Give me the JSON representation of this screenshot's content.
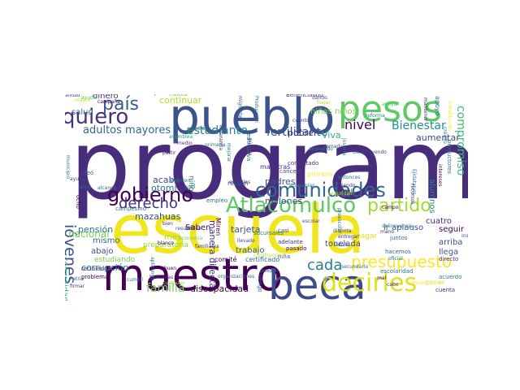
{
  "cloud": {
    "words": [
      {
        "t": "programa",
        "c": "#472d7b"
      },
      {
        "t": "escuela",
        "c": "#f1e51d"
      },
      {
        "t": "pueblo",
        "c": "#3b528b"
      },
      {
        "t": "pesos",
        "c": "#5ec962"
      },
      {
        "t": "maestro",
        "c": "#440154"
      },
      {
        "t": "beca",
        "c": "#3e4a89"
      },
      {
        "t": "gobierno",
        "c": "#440154"
      },
      {
        "t": "comunidades",
        "c": "#31688e"
      },
      {
        "t": "Atlacomulco",
        "c": "#5ec962"
      },
      {
        "t": "quiero",
        "c": "#46327e"
      },
      {
        "t": "decirles",
        "c": "#dde318"
      },
      {
        "t": "presupuesto",
        "c": "#fde725"
      },
      {
        "t": "jóvenes",
        "c": "#3b528b"
      },
      {
        "t": "derecho",
        "c": "#46337f"
      },
      {
        "t": "partido",
        "c": "#a2da37"
      },
      {
        "t": "país",
        "c": "#365d8d"
      },
      {
        "t": "cada",
        "c": "#277f8e"
      },
      {
        "t": "nivel",
        "c": "#440154"
      },
      {
        "t": "fertilizante",
        "c": "#3b528b"
      },
      {
        "t": "estudiante",
        "c": "#26828e"
      },
      {
        "t": "adultos mayores",
        "c": "#31688e"
      },
      {
        "t": "Bienestar",
        "c": "#21918c"
      },
      {
        "t": "familia",
        "c": "#73d056"
      },
      {
        "t": "discapacidad",
        "c": "#440154"
      },
      {
        "t": "corrupción",
        "c": "#2a788e"
      },
      {
        "t": "comunidades indígenas",
        "c": "#2ab07f"
      },
      {
        "t": "compromiso",
        "c": "#3dbc74"
      },
      {
        "t": "aumentar",
        "c": "#3e4c8a"
      },
      {
        "t": "millones",
        "c": "#3b528b"
      },
      {
        "t": "padres",
        "c": "#39568c"
      },
      {
        "t": "tonelada",
        "c": "#3e4989"
      },
      {
        "t": "nacional",
        "c": "#75d054"
      },
      {
        "t": "pensión",
        "c": "#2c728e"
      },
      {
        "t": "mismo",
        "c": "#31688e"
      },
      {
        "t": "abajo",
        "c": "#39568c"
      },
      {
        "t": "salud",
        "c": "#31688e"
      },
      {
        "t": "continuar",
        "c": "#b5de2b"
      },
      {
        "t": "dinero",
        "c": "#46327e"
      },
      {
        "t": "mazahuas",
        "c": "#3b528b"
      },
      {
        "t": "acabó",
        "c": "#3f4788"
      },
      {
        "t": "otomí",
        "c": "#2c728e"
      },
      {
        "t": "pobre",
        "c": "#46337f"
      },
      {
        "t": "Viva",
        "c": "#2db27d"
      },
      {
        "t": "tarjeta",
        "c": "#3b528b"
      },
      {
        "t": "trabajo",
        "c": "#31688e"
      },
      {
        "t": "Saben",
        "c": "#440154"
      },
      {
        "t": "mes",
        "c": "#a5db36"
      },
      {
        "t": "niñas niños",
        "c": "#7ad151"
      },
      {
        "t": "llega",
        "c": "#39568c"
      },
      {
        "t": "arriba",
        "c": "#3b528b"
      },
      {
        "t": "cuatro",
        "c": "#482878"
      },
      {
        "t": "seguir",
        "c": "#440154"
      },
      {
        "t": "ir aplauso",
        "c": "#3b528b"
      },
      {
        "t": "pagar",
        "c": "#d8e219"
      },
      {
        "t": "comité",
        "c": "#440154"
      },
      {
        "t": "certificado",
        "c": "#31688e"
      },
      {
        "t": "estudiando",
        "c": "#7ad151"
      },
      {
        "t": "preparatoria",
        "c": "#8fd744"
      },
      {
        "t": "alumnos",
        "c": "#26828e"
      },
      {
        "t": "niño",
        "c": "#2c728e"
      },
      {
        "t": "manera directa",
        "c": "#46327e"
      },
      {
        "t": "escolaridad",
        "c": "#2a788e"
      },
      {
        "t": "primero",
        "c": "#fde725"
      },
      {
        "t": "maestras",
        "c": "#46337f"
      },
      {
        "t": "apoyo",
        "c": "#2a788e"
      },
      {
        "t": "Miren",
        "c": "#440154"
      },
      {
        "t": "región",
        "c": "#3b528b"
      },
      {
        "t": "sólo",
        "c": "#31688e"
      },
      {
        "t": "adelante",
        "c": "#46327e"
      },
      {
        "t": "casi",
        "c": "#39568c"
      },
      {
        "t": "niña",
        "c": "#3b528b"
      },
      {
        "t": "pasado",
        "c": "#440154"
      },
      {
        "t": "cancelé",
        "c": "#3e4a89"
      },
      {
        "t": "contratado",
        "c": "#46327e"
      },
      {
        "t": "campesino",
        "c": "#2c728e"
      },
      {
        "t": "Beneficiando",
        "c": "#46327e"
      },
      {
        "t": "beneficiando",
        "c": "#39568c"
      },
      {
        "t": "acabar",
        "c": "#3b528b"
      },
      {
        "t": "regiones",
        "c": "#46327e"
      },
      {
        "t": "palabra",
        "c": "#440154"
      },
      {
        "t": "llegar",
        "c": "#b8de29"
      },
      {
        "t": "ustedes",
        "c": "#35b779"
      },
      {
        "t": "dando",
        "c": "#3e4a89"
      },
      {
        "t": "cuanto",
        "c": "#46327e"
      },
      {
        "t": "reforma",
        "c": "#26828e"
      },
      {
        "t": "estudian",
        "c": "#31688e"
      },
      {
        "t": "asamblea",
        "c": "#20a486"
      },
      {
        "t": "primaria",
        "c": "#2c728e"
      },
      {
        "t": "partir",
        "c": "#46327e"
      },
      {
        "t": "creó",
        "c": "#31688e"
      },
      {
        "t": "ocho",
        "c": "#440154"
      },
      {
        "t": "ayuda",
        "c": "#3e4a89"
      },
      {
        "t": "años",
        "c": "#31688e"
      },
      {
        "t": "alcance",
        "c": "#31688e"
      },
      {
        "t": "recibiendo",
        "c": "#46327e"
      },
      {
        "t": "problema",
        "c": "#440154"
      },
      {
        "t": "cumplí",
        "c": "#31688e"
      },
      {
        "t": "firmar",
        "c": "#46327e"
      },
      {
        "t": "Patria",
        "c": "#31688e"
      },
      {
        "t": "bancarias",
        "c": "#46327e"
      },
      {
        "t": "sucursales",
        "c": "#2c728e"
      },
      {
        "t": "blanco",
        "c": "#440154"
      },
      {
        "t": "bien",
        "c": "#46327e"
      },
      {
        "t": "buen",
        "c": "#440154"
      },
      {
        "t": "resultados",
        "c": "#3b528b"
      },
      {
        "t": "seis",
        "c": "#46327e"
      },
      {
        "t": "dé",
        "c": "#39568c"
      },
      {
        "t": "pueden",
        "c": "#2c728e"
      },
      {
        "t": "secundaria",
        "c": "#2c728e"
      },
      {
        "t": "mal",
        "c": "#440154"
      },
      {
        "t": "poner",
        "c": "#d8e219"
      },
      {
        "t": "acuerdo",
        "c": "#2a788e"
      },
      {
        "t": "cuenta",
        "c": "#46327e"
      },
      {
        "t": "directo",
        "c": "#46327e"
      },
      {
        "t": "oficial",
        "c": "#2a788e"
      },
      {
        "t": "hacemos",
        "c": "#31688e"
      },
      {
        "t": "juntos",
        "c": "#31688e"
      },
      {
        "t": "mano",
        "c": "#46327e"
      },
      {
        "t": "distinta",
        "c": "#3e4a89"
      },
      {
        "t": "entregar",
        "c": "#46327e"
      },
      {
        "t": "adulto",
        "c": "#3b528b"
      },
      {
        "t": "delincuencia",
        "c": "#2a788e"
      },
      {
        "t": "campo",
        "c": "#440154"
      },
      {
        "t": "escolar",
        "c": "#3b528b"
      },
      {
        "t": "frijol",
        "c": "#46327e"
      },
      {
        "t": "artesanías",
        "c": "#26828e"
      },
      {
        "t": "cabo",
        "c": "#46327e"
      },
      {
        "t": "Precio",
        "c": "#fde725"
      },
      {
        "t": "Instituto",
        "c": "#39568c"
      },
      {
        "t": "apoyar",
        "c": "#4ac16d"
      },
      {
        "t": "mantener",
        "c": "#46327e"
      },
      {
        "t": "abonando",
        "c": "#2a788e"
      },
      {
        "t": "llamada",
        "c": "#3e4a89"
      },
      {
        "t": "Construyendo",
        "c": "#3e4a89"
      },
      {
        "t": "levanten",
        "c": "#2a788e"
      },
      {
        "t": "economía",
        "c": "#7ad151"
      },
      {
        "t": "medio",
        "c": "#46327e"
      },
      {
        "t": "empleo",
        "c": "#2c728e"
      },
      {
        "t": "cualquier",
        "c": "#a2da37"
      },
      {
        "t": "familiares",
        "c": "#46327e"
      },
      {
        "t": "Vengo",
        "c": "#39568c"
      },
      {
        "t": "construcción",
        "c": "#b8de29"
      },
      {
        "t": "organizaciones",
        "c": "#31688e"
      },
      {
        "t": "llevado",
        "c": "#3e4a89"
      },
      {
        "t": "aplicando",
        "c": "#31688e"
      },
      {
        "t": "haciendo",
        "c": "#46327e"
      },
      {
        "t": "mayor",
        "c": "#d8e219"
      },
      {
        "t": "campaña",
        "c": "#440154"
      },
      {
        "t": "ayudar",
        "c": "#5ec962"
      },
      {
        "t": "medida",
        "c": "#73d056"
      },
      {
        "t": "calidad",
        "c": "#39568c"
      },
      {
        "t": "educativa",
        "c": "#2c728e"
      },
      {
        "t": "pública",
        "c": "#46327e"
      },
      {
        "t": "mejorar",
        "c": "#2c728e"
      },
      {
        "t": "garantía",
        "c": "#46327e"
      },
      {
        "t": "Producción",
        "c": "#31688e"
      },
      {
        "t": "migrantes",
        "c": "#39568c"
      },
      {
        "t": "municipio",
        "c": "#2a788e"
      },
      {
        "t": "paisanos",
        "c": "#31688e"
      },
      {
        "t": "productores",
        "c": "#2a788e"
      },
      {
        "t": "intereses",
        "c": "#440154"
      },
      {
        "t": "crédito",
        "c": "#2a788e"
      },
      {
        "t": "Constitución",
        "c": "#fde725"
      },
      {
        "t": "Ejidatarios",
        "c": "#2c728e"
      },
      {
        "t": "justicia",
        "c": "#2a788e"
      },
      {
        "t": "escuelas",
        "c": "#46327e"
      },
      {
        "t": "seguridad",
        "c": "#b8de29"
      },
      {
        "t": "preescolar",
        "c": "#31688e"
      },
      {
        "t": "recursos",
        "c": "#46327e"
      },
      {
        "t": "entonces",
        "c": "#2a788e"
      },
      {
        "t": "ciclo",
        "c": "#46327e"
      }
    ]
  }
}
